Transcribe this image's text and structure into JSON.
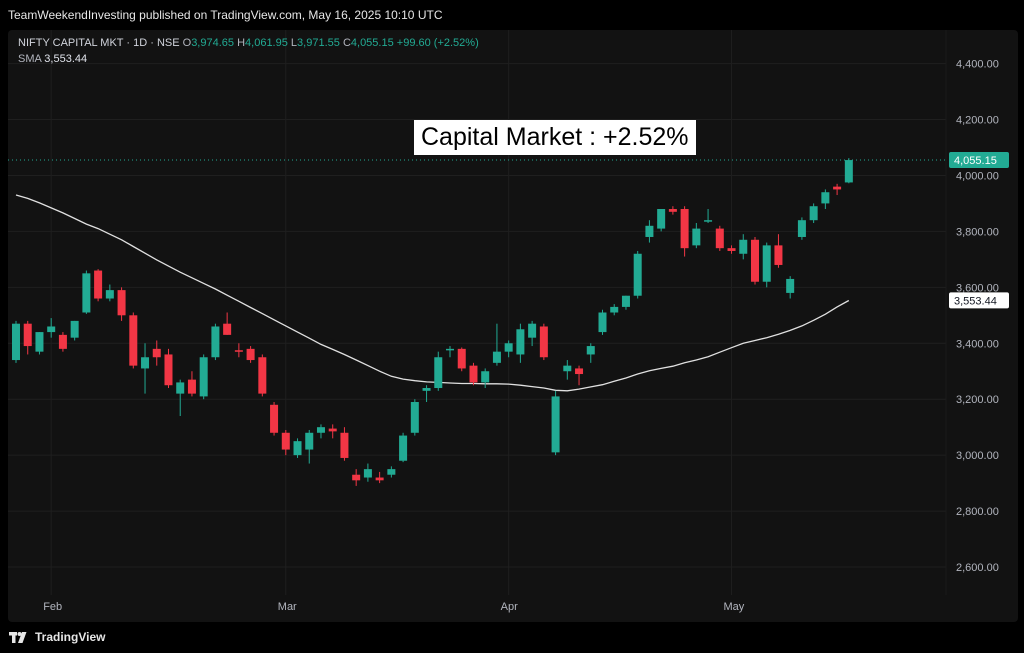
{
  "attribution": "TeamWeekendInvesting published on TradingView.com, May 16, 2025 10:10 UTC",
  "legend": {
    "symbol": "NIFTY CAPITAL MKT · 1D · NSE",
    "o_label": "O",
    "o_value": "3,974.65",
    "h_label": "H",
    "h_value": "4,061.95",
    "l_label": "L",
    "l_value": "3,971.55",
    "c_label": "C",
    "c_value": "4,055.15",
    "change": "+99.60 (+2.52%)",
    "sma_label": "SMA",
    "sma_value": "3,553.44"
  },
  "annotation": "Capital Market : +2.52%",
  "footer": {
    "logo_text": "TradingView"
  },
  "colors": {
    "up": "#22ab94",
    "down": "#f23645",
    "sma": "#e0e0e0",
    "background": "#121212",
    "grid": "#1f1f1f"
  },
  "chart_data": {
    "type": "candlestick",
    "ylim": [
      2500,
      4520
    ],
    "y_ticks": [
      "4,400.00",
      "4,200.00",
      "4,000.00",
      "3,800.00",
      "3,600.00",
      "3,400.00",
      "3,200.00",
      "3,000.00",
      "2,800.00",
      "2,600.00"
    ],
    "y_tick_values": [
      4400,
      4200,
      4000,
      3800,
      3600,
      3400,
      3200,
      3000,
      2800,
      2600
    ],
    "x_ticks": [
      {
        "label": "Feb",
        "index": 3
      },
      {
        "label": "Mar",
        "index": 23
      },
      {
        "label": "Apr",
        "index": 42
      },
      {
        "label": "May",
        "index": 61
      }
    ],
    "last_price_label": "4,055.15",
    "last_price": 4055.15,
    "sma_label": "3,553.44",
    "sma_last": 3553.44,
    "candles": [
      {
        "o": 3340,
        "h": 3480,
        "l": 3330,
        "c": 3470
      },
      {
        "o": 3470,
        "h": 3480,
        "l": 3360,
        "c": 3390
      },
      {
        "o": 3370,
        "h": 3440,
        "l": 3360,
        "c": 3440
      },
      {
        "o": 3440,
        "h": 3490,
        "l": 3420,
        "c": 3460
      },
      {
        "o": 3430,
        "h": 3440,
        "l": 3370,
        "c": 3380
      },
      {
        "o": 3420,
        "h": 3480,
        "l": 3410,
        "c": 3480
      },
      {
        "o": 3510,
        "h": 3660,
        "l": 3505,
        "c": 3650
      },
      {
        "o": 3660,
        "h": 3665,
        "l": 3550,
        "c": 3560
      },
      {
        "o": 3560,
        "h": 3610,
        "l": 3550,
        "c": 3590
      },
      {
        "o": 3590,
        "h": 3600,
        "l": 3480,
        "c": 3500
      },
      {
        "o": 3500,
        "h": 3510,
        "l": 3310,
        "c": 3320
      },
      {
        "o": 3310,
        "h": 3400,
        "l": 3220,
        "c": 3350
      },
      {
        "o": 3380,
        "h": 3410,
        "l": 3320,
        "c": 3350
      },
      {
        "o": 3360,
        "h": 3380,
        "l": 3240,
        "c": 3250
      },
      {
        "o": 3220,
        "h": 3270,
        "l": 3140,
        "c": 3260
      },
      {
        "o": 3270,
        "h": 3300,
        "l": 3210,
        "c": 3220
      },
      {
        "o": 3210,
        "h": 3360,
        "l": 3200,
        "c": 3350
      },
      {
        "o": 3350,
        "h": 3470,
        "l": 3340,
        "c": 3460
      },
      {
        "o": 3470,
        "h": 3510,
        "l": 3430,
        "c": 3430
      },
      {
        "o": 3375,
        "h": 3400,
        "l": 3350,
        "c": 3370
      },
      {
        "o": 3380,
        "h": 3390,
        "l": 3330,
        "c": 3340
      },
      {
        "o": 3350,
        "h": 3360,
        "l": 3210,
        "c": 3220
      },
      {
        "o": 3180,
        "h": 3190,
        "l": 3070,
        "c": 3080
      },
      {
        "o": 3080,
        "h": 3090,
        "l": 3000,
        "c": 3020
      },
      {
        "o": 3000,
        "h": 3060,
        "l": 2990,
        "c": 3050
      },
      {
        "o": 3020,
        "h": 3090,
        "l": 2970,
        "c": 3080
      },
      {
        "o": 3080,
        "h": 3110,
        "l": 3060,
        "c": 3100
      },
      {
        "o": 3095,
        "h": 3110,
        "l": 3060,
        "c": 3085
      },
      {
        "o": 3080,
        "h": 3100,
        "l": 2980,
        "c": 2990
      },
      {
        "o": 2930,
        "h": 2950,
        "l": 2890,
        "c": 2910
      },
      {
        "o": 2920,
        "h": 2970,
        "l": 2905,
        "c": 2950
      },
      {
        "o": 2920,
        "h": 2940,
        "l": 2900,
        "c": 2910
      },
      {
        "o": 2930,
        "h": 2960,
        "l": 2920,
        "c": 2950
      },
      {
        "o": 2980,
        "h": 3080,
        "l": 2975,
        "c": 3070
      },
      {
        "o": 3080,
        "h": 3200,
        "l": 3070,
        "c": 3190
      },
      {
        "o": 3230,
        "h": 3250,
        "l": 3190,
        "c": 3240
      },
      {
        "o": 3240,
        "h": 3370,
        "l": 3230,
        "c": 3350
      },
      {
        "o": 3375,
        "h": 3390,
        "l": 3350,
        "c": 3380
      },
      {
        "o": 3380,
        "h": 3385,
        "l": 3300,
        "c": 3310
      },
      {
        "o": 3320,
        "h": 3330,
        "l": 3250,
        "c": 3260
      },
      {
        "o": 3260,
        "h": 3310,
        "l": 3240,
        "c": 3300
      },
      {
        "o": 3330,
        "h": 3470,
        "l": 3320,
        "c": 3370
      },
      {
        "o": 3370,
        "h": 3410,
        "l": 3350,
        "c": 3400
      },
      {
        "o": 3360,
        "h": 3470,
        "l": 3330,
        "c": 3450
      },
      {
        "o": 3420,
        "h": 3480,
        "l": 3390,
        "c": 3470
      },
      {
        "o": 3460,
        "h": 3470,
        "l": 3340,
        "c": 3350
      },
      {
        "o": 3010,
        "h": 3230,
        "l": 3000,
        "c": 3210
      },
      {
        "o": 3300,
        "h": 3340,
        "l": 3270,
        "c": 3320
      },
      {
        "o": 3310,
        "h": 3320,
        "l": 3250,
        "c": 3290
      },
      {
        "o": 3360,
        "h": 3400,
        "l": 3330,
        "c": 3390
      },
      {
        "o": 3440,
        "h": 3520,
        "l": 3430,
        "c": 3510
      },
      {
        "o": 3510,
        "h": 3540,
        "l": 3500,
        "c": 3530
      },
      {
        "o": 3530,
        "h": 3570,
        "l": 3520,
        "c": 3570
      },
      {
        "o": 3570,
        "h": 3730,
        "l": 3560,
        "c": 3720
      },
      {
        "o": 3780,
        "h": 3840,
        "l": 3760,
        "c": 3820
      },
      {
        "o": 3810,
        "h": 3880,
        "l": 3800,
        "c": 3880
      },
      {
        "o": 3880,
        "h": 3890,
        "l": 3860,
        "c": 3870
      },
      {
        "o": 3880,
        "h": 3890,
        "l": 3710,
        "c": 3740
      },
      {
        "o": 3750,
        "h": 3830,
        "l": 3740,
        "c": 3810
      },
      {
        "o": 3840,
        "h": 3880,
        "l": 3830,
        "c": 3840
      },
      {
        "o": 3810,
        "h": 3820,
        "l": 3730,
        "c": 3740
      },
      {
        "o": 3740,
        "h": 3750,
        "l": 3720,
        "c": 3730
      },
      {
        "o": 3720,
        "h": 3790,
        "l": 3700,
        "c": 3770
      },
      {
        "o": 3770,
        "h": 3780,
        "l": 3610,
        "c": 3620
      },
      {
        "o": 3620,
        "h": 3760,
        "l": 3600,
        "c": 3750
      },
      {
        "o": 3750,
        "h": 3790,
        "l": 3670,
        "c": 3680
      },
      {
        "o": 3580,
        "h": 3640,
        "l": 3560,
        "c": 3630
      },
      {
        "o": 3780,
        "h": 3850,
        "l": 3770,
        "c": 3840
      },
      {
        "o": 3840,
        "h": 3900,
        "l": 3830,
        "c": 3890
      },
      {
        "o": 3900,
        "h": 3950,
        "l": 3880,
        "c": 3940
      },
      {
        "o": 3960,
        "h": 3970,
        "l": 3930,
        "c": 3950
      },
      {
        "o": 3975,
        "h": 4062,
        "l": 3972,
        "c": 4055
      }
    ],
    "sma": [
      3930,
      3918,
      3902,
      3884,
      3866,
      3846,
      3826,
      3810,
      3790,
      3770,
      3746,
      3722,
      3698,
      3676,
      3654,
      3634,
      3614,
      3594,
      3572,
      3550,
      3528,
      3506,
      3484,
      3462,
      3440,
      3418,
      3396,
      3378,
      3360,
      3340,
      3320,
      3300,
      3282,
      3272,
      3266,
      3262,
      3260,
      3258,
      3256,
      3256,
      3255,
      3255,
      3254,
      3250,
      3245,
      3240,
      3232,
      3230,
      3236,
      3244,
      3252,
      3264,
      3276,
      3290,
      3302,
      3310,
      3318,
      3330,
      3340,
      3352,
      3368,
      3384,
      3400,
      3410,
      3420,
      3432,
      3446,
      3462,
      3482,
      3504,
      3530,
      3553
    ]
  }
}
